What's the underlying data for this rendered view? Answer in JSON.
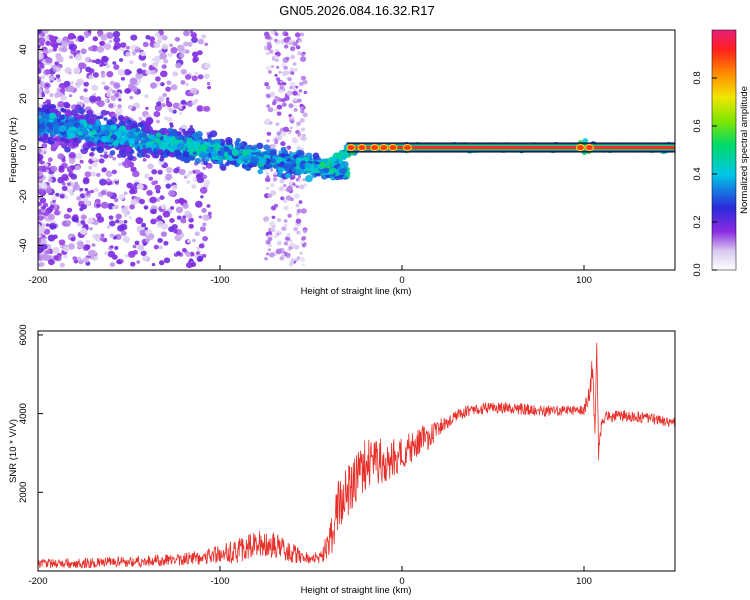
{
  "figure_title": "GN05.2026.084.16.32.R17",
  "chart_data": [
    {
      "type": "heatmap",
      "title": "GN05.2026.084.16.32.R17",
      "xlabel": "Height of straight line (km)",
      "ylabel": "Frequency (Hz)",
      "xlim": [
        -200,
        150
      ],
      "ylim": [
        -50,
        48
      ],
      "xticks": [
        -200,
        -100,
        0,
        100
      ],
      "yticks": [
        -40,
        -20,
        0,
        20,
        40
      ],
      "colorbar": {
        "label": "Normalized spectral amplitude",
        "range": [
          0,
          1
        ],
        "ticks": [
          0.0,
          0.2,
          0.4,
          0.6,
          0.8
        ],
        "colormap": "white-violet-blue-cyan-green-yellow-red-magenta"
      },
      "carrier_line_hz": 0,
      "features": [
        {
          "name": "scattered noise",
          "x_range_km": [
            -200,
            -115
          ],
          "freq_hz_range": [
            -48,
            48
          ]
        },
        {
          "name": "broad spread band",
          "x_range_km": [
            -200,
            -30
          ],
          "center_freq_hz": [
            10,
            -10
          ]
        },
        {
          "name": "secondary noise column",
          "x_range_km": [
            -75,
            -55
          ],
          "freq_hz_range": [
            -48,
            48
          ]
        },
        {
          "name": "narrow carrier",
          "x_range_km": [
            -30,
            150
          ],
          "center_freq_hz": 0
        },
        {
          "name": "spike",
          "x_km": 100,
          "center_freq_hz": 0
        }
      ]
    },
    {
      "type": "line",
      "xlabel": "Height of straight line (km)",
      "ylabel": "SNR (10 * V/V)",
      "xlim": [
        -200,
        150
      ],
      "ylim": [
        0,
        6100
      ],
      "xticks": [
        -200,
        -100,
        0,
        100
      ],
      "yticks": [
        2000,
        4000,
        6000
      ],
      "series": [
        {
          "name": "SNR",
          "color": "#e8302a",
          "x": [
            -200,
            -180,
            -160,
            -140,
            -120,
            -100,
            -90,
            -80,
            -70,
            -60,
            -50,
            -45,
            -40,
            -35,
            -30,
            -25,
            -20,
            -15,
            -10,
            -5,
            0,
            5,
            10,
            15,
            20,
            25,
            30,
            35,
            40,
            50,
            60,
            70,
            80,
            90,
            100,
            103,
            105,
            106,
            107,
            108,
            110,
            120,
            130,
            140,
            150
          ],
          "values": [
            180,
            200,
            220,
            250,
            300,
            430,
            500,
            700,
            650,
            450,
            300,
            330,
            700,
            1600,
            2000,
            2400,
            2700,
            2800,
            2800,
            2900,
            3000,
            3100,
            3300,
            3400,
            3600,
            3800,
            3950,
            4050,
            4100,
            4150,
            4150,
            4100,
            4050,
            4080,
            4100,
            4500,
            5200,
            3500,
            5800,
            3000,
            3900,
            3950,
            3900,
            3850,
            3750
          ],
          "noise_amplitude": [
            120,
            130,
            140,
            150,
            160,
            250,
            300,
            350,
            330,
            250,
            120,
            200,
            450,
            700,
            650,
            650,
            650,
            600,
            550,
            500,
            450,
            420,
            400,
            300,
            250,
            220,
            180,
            150,
            140,
            150,
            150,
            150,
            140,
            130,
            130,
            300,
            500,
            300,
            100,
            200,
            160,
            150,
            150,
            140,
            140
          ]
        }
      ]
    }
  ]
}
